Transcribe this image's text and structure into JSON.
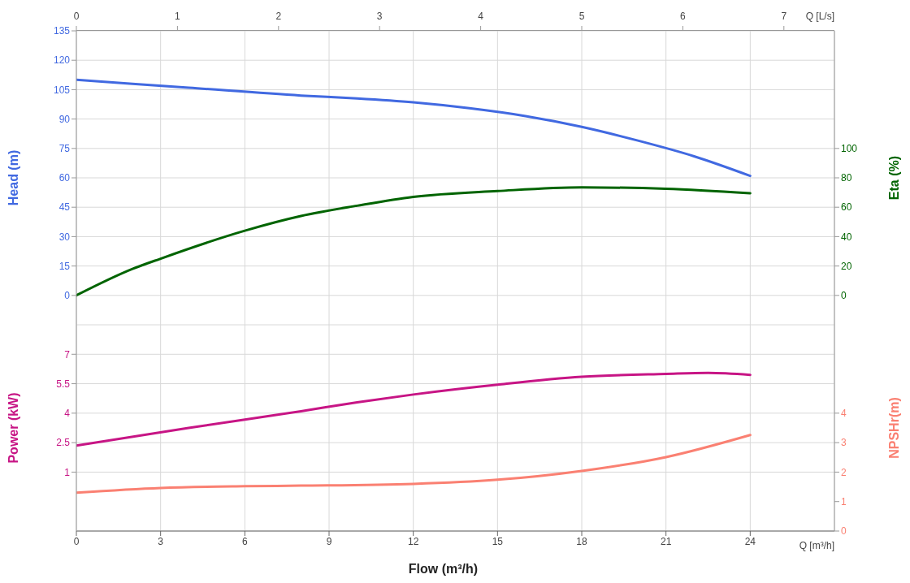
{
  "chart_data": [
    {
      "type": "line",
      "xlim": [
        0,
        27
      ],
      "xticks": [
        0,
        3,
        6,
        9,
        12,
        15,
        18,
        21,
        24
      ],
      "x2lim": [
        0,
        7.5
      ],
      "x2ticks": [
        0,
        1,
        2,
        3,
        4,
        5,
        6,
        7
      ],
      "x2label": "Q [L/s]",
      "ylabel": "Head (m)",
      "ylim": [
        -15,
        135
      ],
      "yticks": [
        0,
        15,
        30,
        45,
        60,
        75,
        90,
        105,
        120,
        135
      ],
      "y2label": "Eta (%)",
      "y2lim": [
        -20,
        180
      ],
      "y2ticks": [
        0,
        20,
        40,
        60,
        80,
        100
      ],
      "grid": true,
      "tick_labels": "y",
      "series": [
        {
          "color": "#4169e1",
          "x": [
            0,
            4,
            8,
            10,
            12,
            14,
            16,
            18,
            20,
            22,
            24
          ],
          "values": [
            110,
            106,
            102,
            100.5,
            98.5,
            95.5,
            91.5,
            86,
            79,
            71,
            61
          ]
        },
        {
          "color": "#006400",
          "axis": "y2",
          "x": [
            0,
            2,
            3,
            6,
            8,
            10,
            12,
            15,
            18,
            21,
            24
          ],
          "values": [
            0,
            18,
            25,
            44,
            54,
            61,
            67,
            71,
            73.5,
            72.5,
            69.5
          ]
        }
      ]
    },
    {
      "type": "line",
      "xlim": [
        0,
        27
      ],
      "xticks": [
        0,
        3,
        6,
        9,
        12,
        15,
        18,
        21,
        24
      ],
      "xlabel": "Flow (m³/h)",
      "ylabel": "Power (kW)",
      "ylim": [
        -2,
        8.5
      ],
      "yticks": [
        1,
        2.5,
        4,
        5.5,
        7
      ],
      "y2label": "NPSHr(m)",
      "y2lim": [
        0,
        7
      ],
      "y2ticks": [
        0,
        1,
        2,
        3,
        4
      ],
      "grid": true,
      "annotations": [
        "Q [m³/h]"
      ],
      "series": [
        {
          "color": "#c71585",
          "x": [
            0,
            4,
            8,
            10,
            12,
            15,
            18,
            21,
            22.5,
            24
          ],
          "values": [
            2.35,
            3.25,
            4.1,
            4.55,
            4.95,
            5.45,
            5.85,
            6,
            6.05,
            5.95
          ]
        },
        {
          "color": "#fa8072",
          "axis": "y2",
          "x": [
            0,
            3,
            6,
            8,
            12,
            15,
            18,
            21,
            24
          ],
          "values": [
            1.3,
            1.46,
            1.52,
            1.54,
            1.6,
            1.74,
            2.04,
            2.51,
            3.26
          ]
        }
      ]
    }
  ]
}
